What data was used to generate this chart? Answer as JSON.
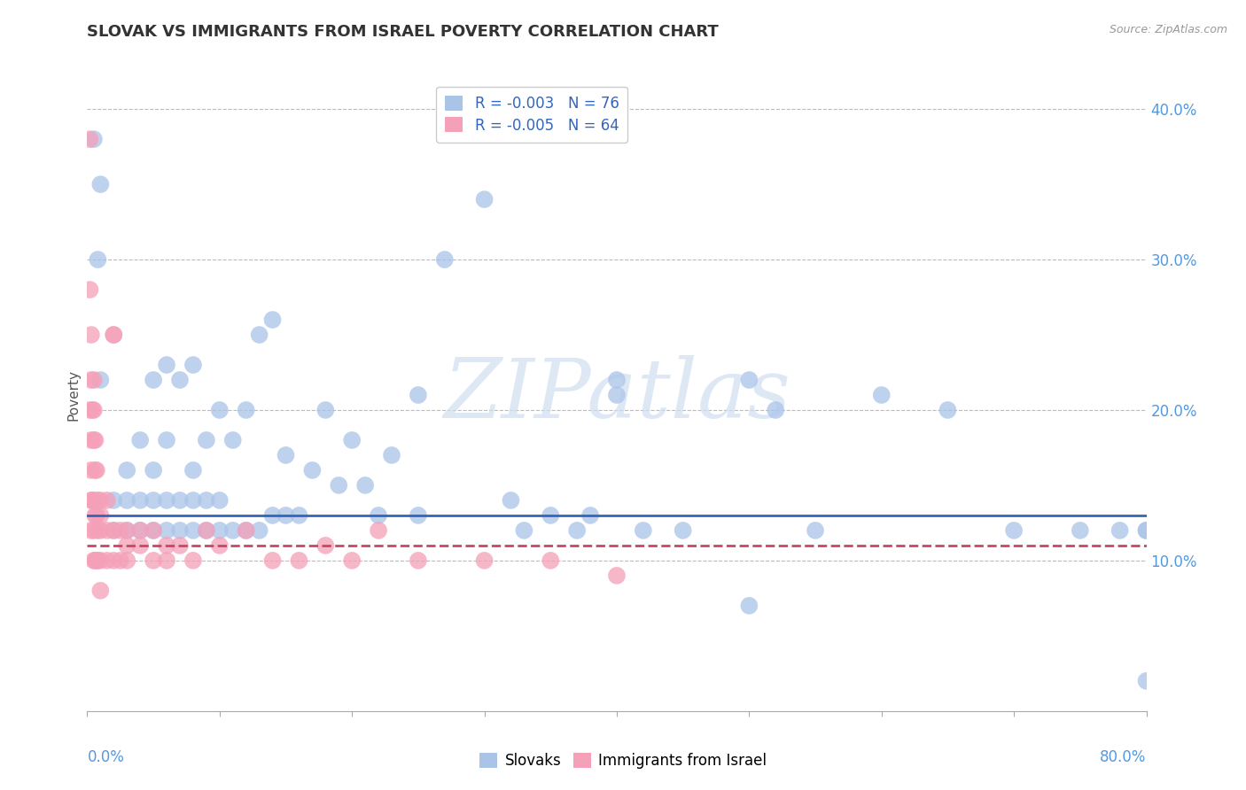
{
  "title": "SLOVAK VS IMMIGRANTS FROM ISRAEL POVERTY CORRELATION CHART",
  "source": "Source: ZipAtlas.com",
  "ylabel": "Poverty",
  "xlim": [
    0.0,
    0.8
  ],
  "ylim": [
    0.0,
    0.42
  ],
  "yticks": [
    0.1,
    0.2,
    0.3,
    0.4
  ],
  "ytick_labels": [
    "10.0%",
    "20.0%",
    "30.0%",
    "40.0%"
  ],
  "blue_r": "-0.003",
  "blue_n": "76",
  "pink_r": "-0.005",
  "pink_n": "64",
  "blue_color": "#aac4e8",
  "pink_color": "#f4a0b8",
  "blue_edge_color": "#5588cc",
  "pink_edge_color": "#cc6688",
  "blue_line_color": "#3366bb",
  "pink_line_color": "#cc4466",
  "legend_label_blue": "Slovaks",
  "legend_label_pink": "Immigrants from Israel",
  "watermark": "ZIPatlas",
  "background_color": "#ffffff",
  "grid_color": "#bbbbbb",
  "blue_trend_y": 0.13,
  "pink_trend_y": 0.11,
  "blue_scatter_x": [
    0.005,
    0.008,
    0.01,
    0.01,
    0.02,
    0.02,
    0.03,
    0.03,
    0.03,
    0.04,
    0.04,
    0.04,
    0.05,
    0.05,
    0.05,
    0.05,
    0.06,
    0.06,
    0.06,
    0.06,
    0.07,
    0.07,
    0.07,
    0.08,
    0.08,
    0.08,
    0.08,
    0.09,
    0.09,
    0.09,
    0.1,
    0.1,
    0.1,
    0.11,
    0.11,
    0.12,
    0.12,
    0.13,
    0.13,
    0.14,
    0.14,
    0.15,
    0.15,
    0.16,
    0.17,
    0.18,
    0.19,
    0.2,
    0.21,
    0.22,
    0.23,
    0.25,
    0.27,
    0.3,
    0.32,
    0.33,
    0.35,
    0.37,
    0.38,
    0.4,
    0.42,
    0.45,
    0.5,
    0.52,
    0.55,
    0.6,
    0.65,
    0.5,
    0.25,
    0.4,
    0.7,
    0.75,
    0.78,
    0.8,
    0.8,
    0.8
  ],
  "blue_scatter_y": [
    0.38,
    0.3,
    0.35,
    0.22,
    0.12,
    0.14,
    0.12,
    0.14,
    0.16,
    0.12,
    0.14,
    0.18,
    0.12,
    0.14,
    0.16,
    0.22,
    0.12,
    0.14,
    0.18,
    0.23,
    0.12,
    0.14,
    0.22,
    0.12,
    0.14,
    0.16,
    0.23,
    0.12,
    0.14,
    0.18,
    0.12,
    0.14,
    0.2,
    0.12,
    0.18,
    0.12,
    0.2,
    0.12,
    0.25,
    0.13,
    0.26,
    0.13,
    0.17,
    0.13,
    0.16,
    0.2,
    0.15,
    0.18,
    0.15,
    0.13,
    0.17,
    0.13,
    0.3,
    0.34,
    0.14,
    0.12,
    0.13,
    0.12,
    0.13,
    0.22,
    0.12,
    0.12,
    0.07,
    0.2,
    0.12,
    0.21,
    0.2,
    0.22,
    0.21,
    0.21,
    0.12,
    0.12,
    0.12,
    0.12,
    0.12,
    0.02
  ],
  "pink_scatter_x": [
    0.002,
    0.002,
    0.002,
    0.003,
    0.003,
    0.003,
    0.003,
    0.003,
    0.003,
    0.004,
    0.004,
    0.005,
    0.005,
    0.005,
    0.005,
    0.005,
    0.005,
    0.006,
    0.006,
    0.006,
    0.006,
    0.007,
    0.007,
    0.007,
    0.008,
    0.008,
    0.008,
    0.01,
    0.01,
    0.01,
    0.01,
    0.01,
    0.015,
    0.015,
    0.015,
    0.02,
    0.02,
    0.02,
    0.02,
    0.025,
    0.025,
    0.03,
    0.03,
    0.03,
    0.04,
    0.04,
    0.05,
    0.05,
    0.06,
    0.06,
    0.07,
    0.08,
    0.09,
    0.1,
    0.12,
    0.14,
    0.16,
    0.18,
    0.2,
    0.22,
    0.25,
    0.3,
    0.35,
    0.4
  ],
  "pink_scatter_y": [
    0.38,
    0.28,
    0.2,
    0.25,
    0.22,
    0.18,
    0.16,
    0.14,
    0.12,
    0.2,
    0.14,
    0.22,
    0.2,
    0.18,
    0.14,
    0.12,
    0.1,
    0.18,
    0.16,
    0.13,
    0.1,
    0.16,
    0.13,
    0.1,
    0.14,
    0.12,
    0.1,
    0.14,
    0.13,
    0.12,
    0.1,
    0.08,
    0.14,
    0.12,
    0.1,
    0.25,
    0.25,
    0.12,
    0.1,
    0.12,
    0.1,
    0.12,
    0.11,
    0.1,
    0.11,
    0.12,
    0.12,
    0.1,
    0.11,
    0.1,
    0.11,
    0.1,
    0.12,
    0.11,
    0.12,
    0.1,
    0.1,
    0.11,
    0.1,
    0.12,
    0.1,
    0.1,
    0.1,
    0.09
  ]
}
